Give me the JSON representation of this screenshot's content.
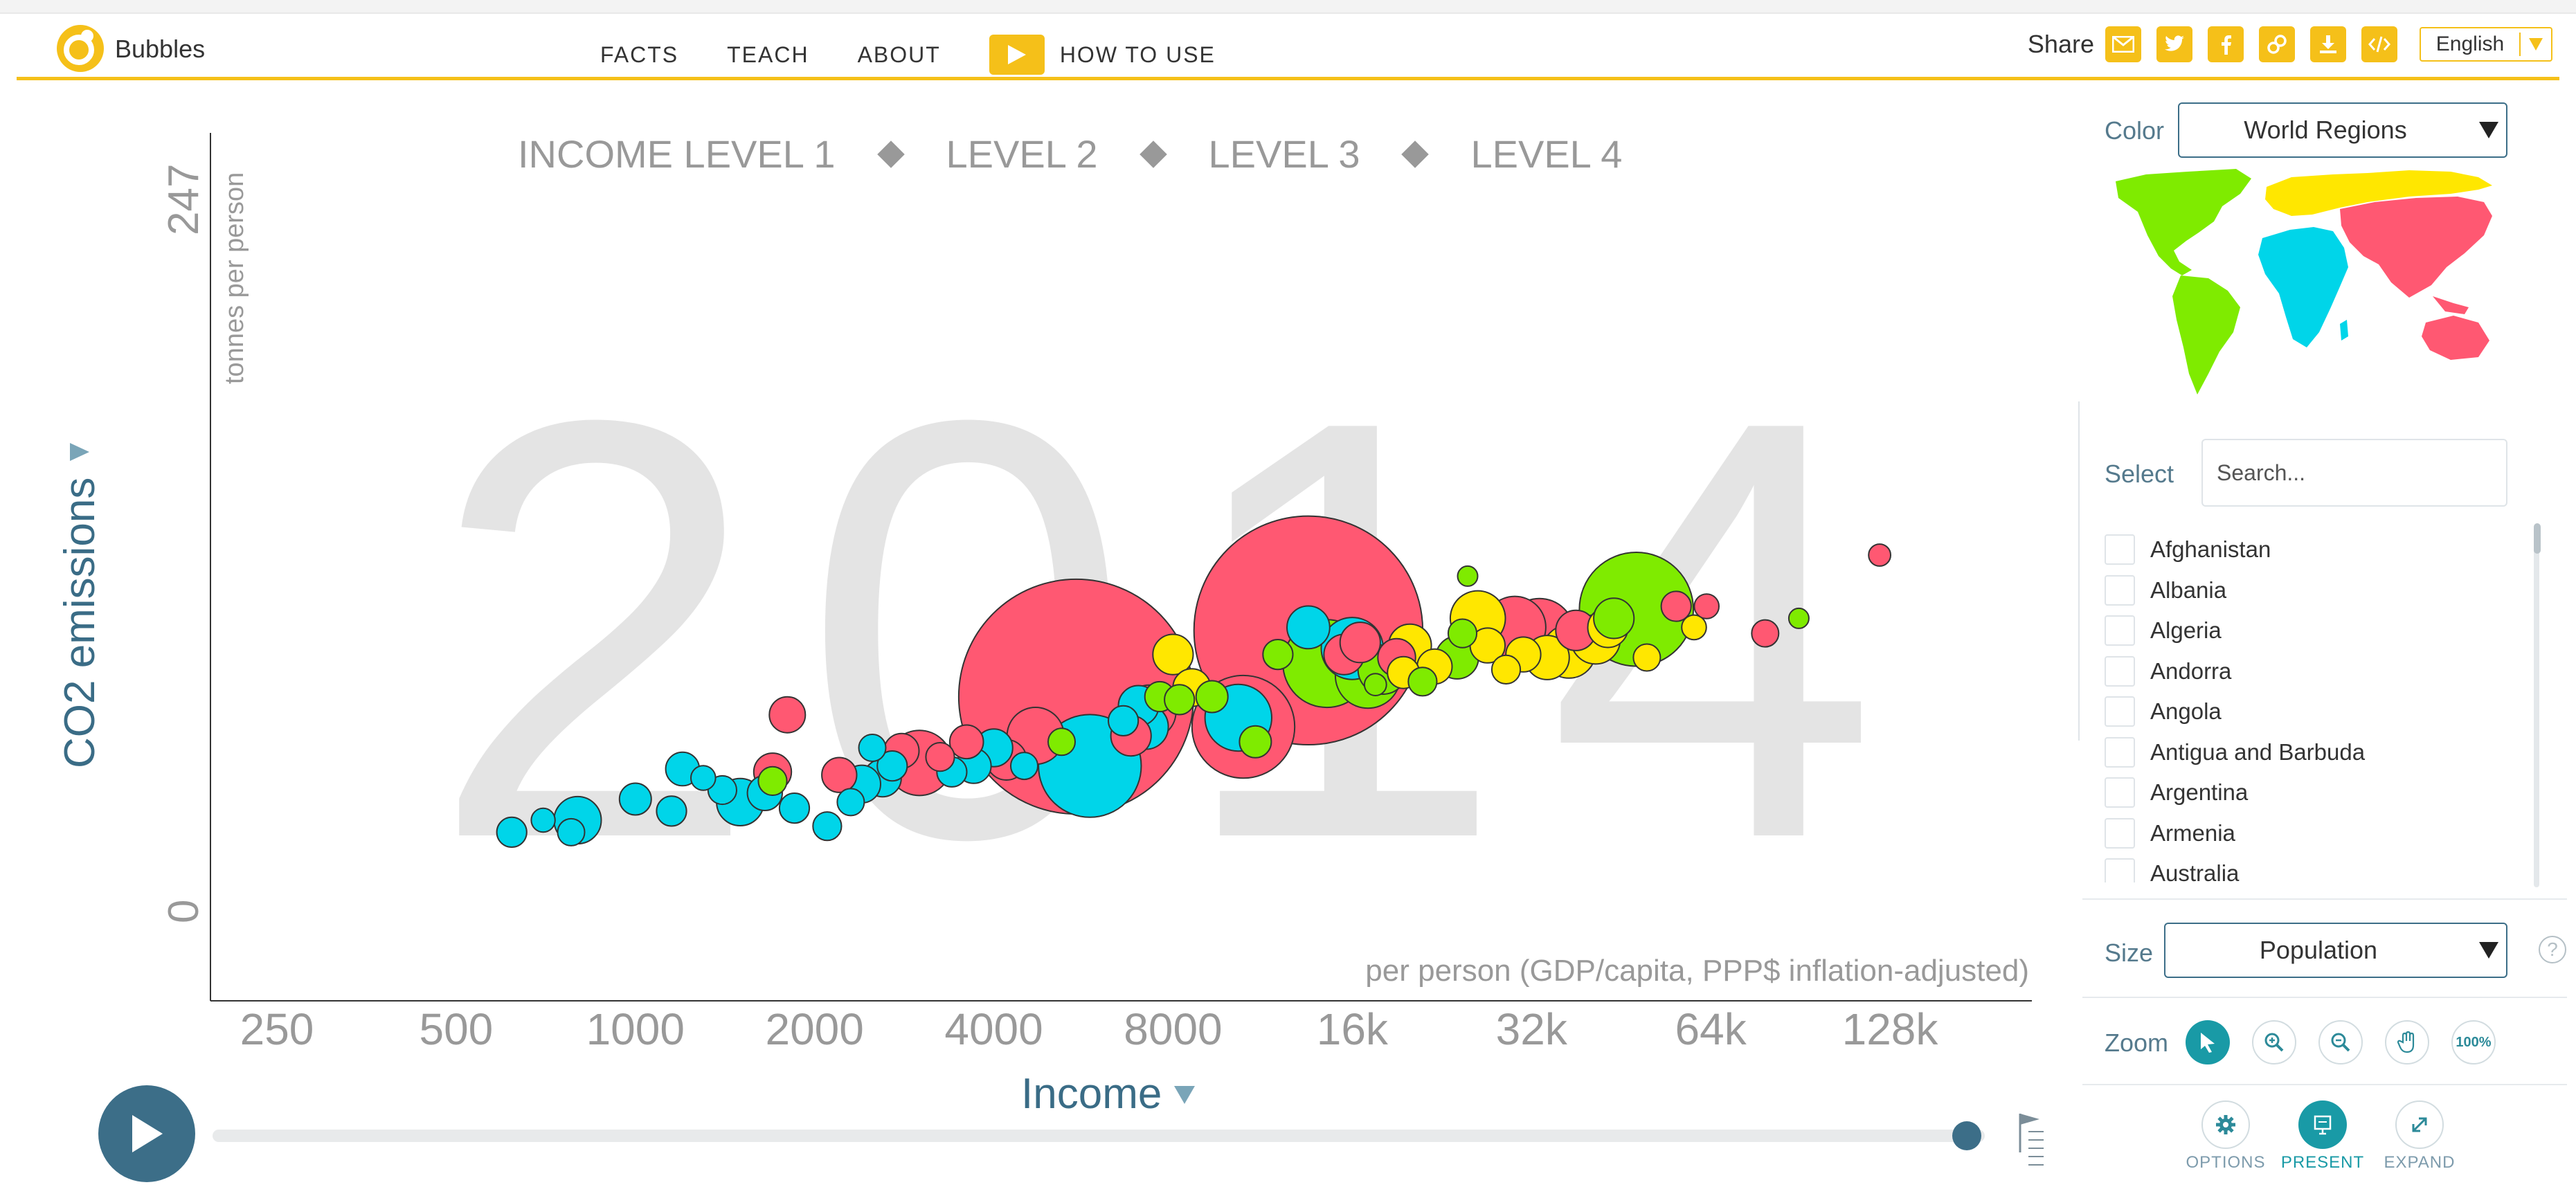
{
  "header": {
    "app_title": "Bubbles",
    "nav": [
      "FACTS",
      "TEACH",
      "ABOUT"
    ],
    "how_to_use": "HOW TO USE",
    "share_label": "Share",
    "language": "English",
    "accent_color": "#f5c019"
  },
  "chart": {
    "year": "2014",
    "y_axis": {
      "label": "CO2 emissions",
      "sublabel": "tonnes per person",
      "tick_max": "247",
      "tick_min": "0"
    },
    "x_axis": {
      "label": "Income",
      "sublabel": "per person (GDP/capita, PPP$ inflation-adjusted)"
    },
    "income_levels": [
      "INCOME LEVEL 1",
      "LEVEL 2",
      "LEVEL 3",
      "LEVEL 4"
    ]
  },
  "chart_data": {
    "type": "scatter",
    "x_scale": "log",
    "x_ticks": [
      "250",
      "500",
      "1000",
      "2000",
      "4000",
      "8000",
      "16k",
      "32k",
      "64k",
      "128k"
    ],
    "xlim": [
      250,
      128000
    ],
    "ylim": [
      0,
      247
    ],
    "region_colors": {
      "africa": "#00d5e9",
      "americas": "#7feb00",
      "asia": "#ff5872",
      "europe": "#ffe700"
    },
    "bubbles": [
      {
        "x": 5500,
        "y": 95,
        "size": 1360,
        "region": "asia"
      },
      {
        "x": 13500,
        "y": 117,
        "size": 1290,
        "region": "asia"
      },
      {
        "x": 10500,
        "y": 85,
        "size": 260,
        "region": "asia"
      },
      {
        "x": 5800,
        "y": 72,
        "size": 260,
        "region": "africa"
      },
      {
        "x": 14500,
        "y": 106,
        "size": 190,
        "region": "americas"
      },
      {
        "x": 48000,
        "y": 124,
        "size": 320,
        "region": "americas"
      },
      {
        "x": 4700,
        "y": 82,
        "size": 80,
        "region": "asia"
      },
      {
        "x": 3000,
        "y": 73,
        "size": 105,
        "region": "asia"
      },
      {
        "x": 7300,
        "y": 90,
        "size": 70,
        "region": "asia"
      },
      {
        "x": 10300,
        "y": 88,
        "size": 110,
        "region": "africa"
      },
      {
        "x": 16000,
        "y": 111,
        "size": 95,
        "region": "africa"
      },
      {
        "x": 17000,
        "y": 102,
        "size": 105,
        "region": "americas"
      },
      {
        "x": 18000,
        "y": 104,
        "size": 60,
        "region": "americas"
      },
      {
        "x": 26000,
        "y": 121,
        "size": 75,
        "region": "europe"
      },
      {
        "x": 30000,
        "y": 118,
        "size": 95,
        "region": "asia"
      },
      {
        "x": 33000,
        "y": 116,
        "size": 120,
        "region": "asia"
      },
      {
        "x": 38000,
        "y": 117,
        "size": 40,
        "region": "asia"
      },
      {
        "x": 37000,
        "y": 110,
        "size": 70,
        "region": "europe"
      },
      {
        "x": 41000,
        "y": 114,
        "size": 60,
        "region": "europe"
      },
      {
        "x": 43000,
        "y": 118,
        "size": 40,
        "region": "europe"
      },
      {
        "x": 44000,
        "y": 121,
        "size": 40,
        "region": "americas"
      },
      {
        "x": 31000,
        "y": 109,
        "size": 30,
        "region": "europe"
      },
      {
        "x": 34000,
        "y": 108,
        "size": 48,
        "region": "europe"
      },
      {
        "x": 24000,
        "y": 108,
        "size": 45,
        "region": "americas"
      },
      {
        "x": 22000,
        "y": 105,
        "size": 30,
        "region": "europe"
      },
      {
        "x": 27000,
        "y": 112,
        "size": 30,
        "region": "europe"
      },
      {
        "x": 20000,
        "y": 112,
        "size": 45,
        "region": "europe"
      },
      {
        "x": 19000,
        "y": 108,
        "size": 35,
        "region": "asia"
      },
      {
        "x": 15500,
        "y": 109,
        "size": 40,
        "region": "asia"
      },
      {
        "x": 13500,
        "y": 118,
        "size": 45,
        "region": "africa"
      },
      {
        "x": 8000,
        "y": 109,
        "size": 40,
        "region": "europe"
      },
      {
        "x": 7000,
        "y": 92,
        "size": 40,
        "region": "africa"
      },
      {
        "x": 7200,
        "y": 85,
        "size": 50,
        "region": "africa"
      },
      {
        "x": 6800,
        "y": 82,
        "size": 40,
        "region": "asia"
      },
      {
        "x": 4200,
        "y": 74,
        "size": 40,
        "region": "asia"
      },
      {
        "x": 4000,
        "y": 78,
        "size": 35,
        "region": "africa"
      },
      {
        "x": 3600,
        "y": 80,
        "size": 28,
        "region": "asia"
      },
      {
        "x": 3700,
        "y": 72,
        "size": 30,
        "region": "africa"
      },
      {
        "x": 2800,
        "y": 77,
        "size": 30,
        "region": "asia"
      },
      {
        "x": 2600,
        "y": 68,
        "size": 35,
        "region": "africa"
      },
      {
        "x": 2400,
        "y": 66,
        "size": 35,
        "region": "africa"
      },
      {
        "x": 2200,
        "y": 69,
        "size": 30,
        "region": "asia"
      },
      {
        "x": 1500,
        "y": 60,
        "size": 55,
        "region": "africa"
      },
      {
        "x": 1650,
        "y": 63,
        "size": 30,
        "region": "africa"
      },
      {
        "x": 1700,
        "y": 70,
        "size": 35,
        "region": "asia"
      },
      {
        "x": 1800,
        "y": 89,
        "size": 32,
        "region": "asia"
      },
      {
        "x": 1400,
        "y": 64,
        "size": 20,
        "region": "africa"
      },
      {
        "x": 1200,
        "y": 71,
        "size": 28,
        "region": "africa"
      },
      {
        "x": 1000,
        "y": 61,
        "size": 25,
        "region": "africa"
      },
      {
        "x": 800,
        "y": 54,
        "size": 55,
        "region": "africa"
      },
      {
        "x": 620,
        "y": 50,
        "size": 22,
        "region": "africa"
      },
      {
        "x": 700,
        "y": 54,
        "size": 14,
        "region": "africa"
      },
      {
        "x": 780,
        "y": 50,
        "size": 18,
        "region": "africa"
      },
      {
        "x": 1150,
        "y": 57,
        "size": 22,
        "region": "africa"
      },
      {
        "x": 1850,
        "y": 58,
        "size": 22,
        "region": "africa"
      },
      {
        "x": 2100,
        "y": 52,
        "size": 20,
        "region": "africa"
      },
      {
        "x": 2300,
        "y": 60,
        "size": 18,
        "region": "africa"
      },
      {
        "x": 2500,
        "y": 78,
        "size": 18,
        "region": "africa"
      },
      {
        "x": 1300,
        "y": 68,
        "size": 15,
        "region": "africa"
      },
      {
        "x": 1700,
        "y": 67,
        "size": 20,
        "region": "americas"
      },
      {
        "x": 3400,
        "y": 70,
        "size": 22,
        "region": "africa"
      },
      {
        "x": 3250,
        "y": 75,
        "size": 20,
        "region": "asia"
      },
      {
        "x": 2700,
        "y": 72,
        "size": 22,
        "region": "africa"
      },
      {
        "x": 5200,
        "y": 80,
        "size": 18,
        "region": "americas"
      },
      {
        "x": 4500,
        "y": 72,
        "size": 18,
        "region": "africa"
      },
      {
        "x": 6600,
        "y": 87,
        "size": 22,
        "region": "africa"
      },
      {
        "x": 7600,
        "y": 95,
        "size": 22,
        "region": "americas"
      },
      {
        "x": 8600,
        "y": 98,
        "size": 35,
        "region": "europe"
      },
      {
        "x": 8200,
        "y": 94,
        "size": 22,
        "region": "americas"
      },
      {
        "x": 9300,
        "y": 95,
        "size": 25,
        "region": "americas"
      },
      {
        "x": 11000,
        "y": 80,
        "size": 25,
        "region": "americas"
      },
      {
        "x": 12000,
        "y": 109,
        "size": 22,
        "region": "americas"
      },
      {
        "x": 16500,
        "y": 113,
        "size": 40,
        "region": "asia"
      },
      {
        "x": 19500,
        "y": 103,
        "size": 25,
        "region": "europe"
      },
      {
        "x": 21000,
        "y": 100,
        "size": 20,
        "region": "americas"
      },
      {
        "x": 24500,
        "y": 116,
        "size": 20,
        "region": "americas"
      },
      {
        "x": 29000,
        "y": 104,
        "size": 20,
        "region": "europe"
      },
      {
        "x": 56000,
        "y": 125,
        "size": 22,
        "region": "asia"
      },
      {
        "x": 60000,
        "y": 118,
        "size": 15,
        "region": "europe"
      },
      {
        "x": 79000,
        "y": 116,
        "size": 18,
        "region": "asia"
      },
      {
        "x": 50000,
        "y": 108,
        "size": 18,
        "region": "europe"
      },
      {
        "x": 63000,
        "y": 125,
        "size": 15,
        "region": "asia"
      },
      {
        "x": 90000,
        "y": 121,
        "size": 10,
        "region": "americas"
      },
      {
        "x": 123000,
        "y": 142,
        "size": 12,
        "region": "asia"
      },
      {
        "x": 25000,
        "y": 135,
        "size": 10,
        "region": "americas"
      },
      {
        "x": 17500,
        "y": 99,
        "size": 12,
        "region": "americas"
      }
    ]
  },
  "timeline": {
    "year_value": "2014",
    "progress": 0.99
  },
  "panel": {
    "color_label": "Color",
    "color_value": "World Regions",
    "select_label": "Select",
    "search_placeholder": "Search...",
    "countries": [
      "Afghanistan",
      "Albania",
      "Algeria",
      "Andorra",
      "Angola",
      "Antigua and Barbuda",
      "Argentina",
      "Armenia",
      "Australia"
    ],
    "size_label": "Size",
    "size_value": "Population",
    "help": "?",
    "zoom_label": "Zoom",
    "zoom_reset": "100%",
    "options_label": "OPTIONS",
    "present_label": "PRESENT",
    "expand_label": "EXPAND",
    "panel_accent": "#3c6e88",
    "active_color": "#199aa6"
  }
}
